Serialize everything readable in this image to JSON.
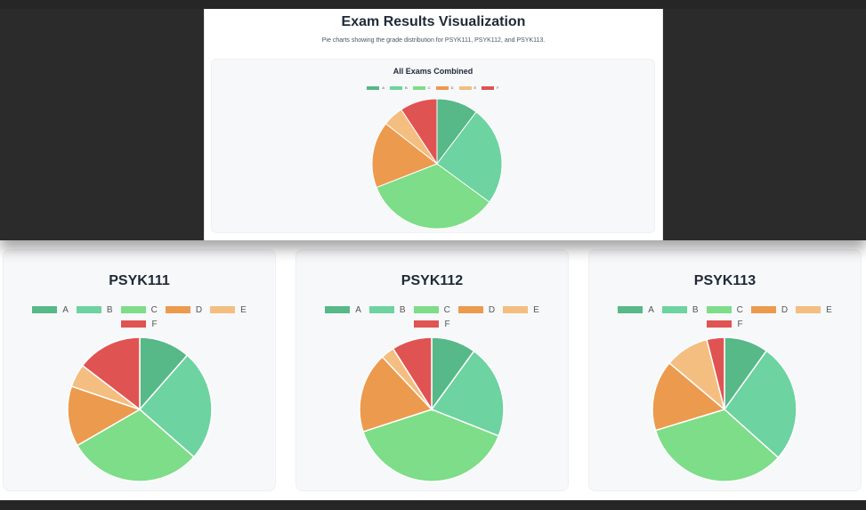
{
  "header": {
    "title": "Exam Results Visualization",
    "subtitle": "Pie charts showing the grade distribution for PSYK111, PSYK112, and PSYK113."
  },
  "colors": {
    "A": "#57b888",
    "B": "#6dd3a0",
    "C": "#7ddd88",
    "D": "#ec9a4e",
    "E": "#f3be80",
    "F": "#e05353"
  },
  "chart_data": [
    {
      "type": "pie",
      "title": "All Exams Combined",
      "categories": [
        "A",
        "B",
        "C",
        "D",
        "E",
        "F"
      ],
      "values": [
        10,
        24,
        33,
        16,
        5,
        9
      ]
    },
    {
      "type": "pie",
      "title": "PSYK111",
      "categories": [
        "A",
        "B",
        "C",
        "D",
        "E",
        "F"
      ],
      "values": [
        11,
        24,
        29,
        13,
        5,
        14
      ]
    },
    {
      "type": "pie",
      "title": "PSYK112",
      "categories": [
        "A",
        "B",
        "C",
        "D",
        "E",
        "F"
      ],
      "values": [
        10,
        21,
        39,
        18,
        3,
        9
      ]
    },
    {
      "type": "pie",
      "title": "PSYK113",
      "categories": [
        "A",
        "B",
        "C",
        "D",
        "E",
        "F"
      ],
      "values": [
        10,
        27,
        34,
        16,
        10,
        4
      ]
    }
  ]
}
